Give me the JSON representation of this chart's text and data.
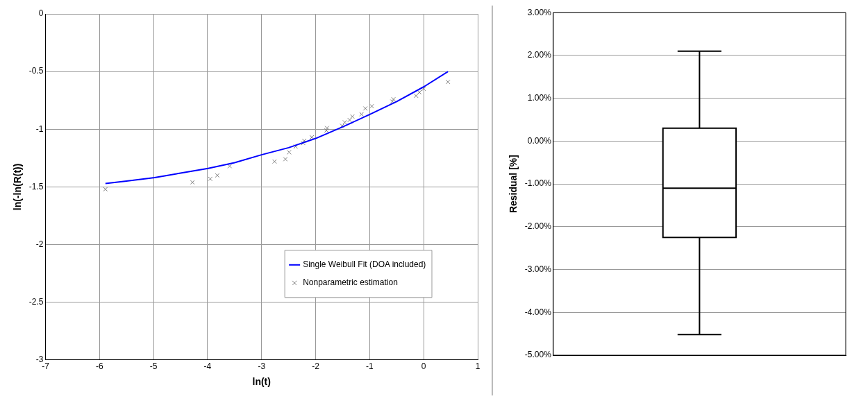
{
  "chart_data": [
    {
      "type": "scatter",
      "xlabel": "ln(t)",
      "ylabel": "ln(-ln(R(t))",
      "xlim": [
        -7,
        1
      ],
      "ylim": [
        -3,
        0
      ],
      "xticks": [
        -7,
        -6,
        -5,
        -4,
        -3,
        -2,
        -1,
        0,
        1
      ],
      "yticks": [
        0,
        -0.5,
        -1,
        -1.5,
        -2,
        -2.5,
        -3
      ],
      "grid": true,
      "legend": "bottom right",
      "series": [
        {
          "name": "Single Weibull Fit (DOA included)",
          "type": "line",
          "color": "#0000ff",
          "marker": "none",
          "line_style": "solid",
          "x": [
            -5.89,
            -5.5,
            -4.98,
            -4.5,
            -3.99,
            -3.5,
            -2.99,
            -2.5,
            -2.0,
            -1.5,
            -0.99,
            -0.5,
            0.01,
            0.45
          ],
          "values": [
            -1.47,
            -1.45,
            -1.42,
            -1.38,
            -1.34,
            -1.29,
            -1.22,
            -1.16,
            -1.08,
            -0.98,
            -0.87,
            -0.76,
            -0.63,
            -0.5
          ]
        },
        {
          "name": "Nonparametric estimation",
          "type": "scatter",
          "color": "#808080",
          "marker": "cross",
          "x": [
            -5.89,
            -4.28,
            -3.95,
            -3.82,
            -3.59,
            -2.76,
            -2.56,
            -2.49,
            -2.37,
            -2.23,
            -2.21,
            -2.07,
            -1.8,
            -1.79,
            -1.51,
            -1.46,
            -1.37,
            -1.32,
            -1.15,
            -1.08,
            -0.96,
            -0.58,
            -0.56,
            -0.14,
            -0.08,
            0.0,
            0.45
          ],
          "values": [
            -1.52,
            -1.46,
            -1.43,
            -1.4,
            -1.32,
            -1.28,
            -1.26,
            -1.2,
            -1.15,
            -1.12,
            -1.1,
            -1.07,
            -1.01,
            -0.99,
            -0.97,
            -0.94,
            -0.92,
            -0.89,
            -0.87,
            -0.82,
            -0.8,
            -0.76,
            -0.74,
            -0.71,
            -0.68,
            -0.65,
            -0.59
          ]
        }
      ]
    },
    {
      "type": "box",
      "ylabel": "Residual [%]",
      "categories": [
        null
      ],
      "ylim": [
        -5,
        3
      ],
      "yticks": [
        {
          "value": 3,
          "label": "3.00%"
        },
        {
          "value": 2,
          "label": "2.00%"
        },
        {
          "value": 1,
          "label": "1.00%"
        },
        {
          "value": 0,
          "label": "0.00%"
        },
        {
          "value": -1,
          "label": "-1.00%"
        },
        {
          "value": -2,
          "label": "-2.00%"
        },
        {
          "value": -3,
          "label": "-3.00%"
        },
        {
          "value": -4,
          "label": "-4.00%"
        },
        {
          "value": -5,
          "label": "-5.00%"
        }
      ],
      "grid": "y",
      "tick_labels": "y",
      "boxes": [
        {
          "low": -4.52,
          "q1": -2.25,
          "median": -1.1,
          "q3": 0.3,
          "high": 2.1
        }
      ]
    }
  ]
}
